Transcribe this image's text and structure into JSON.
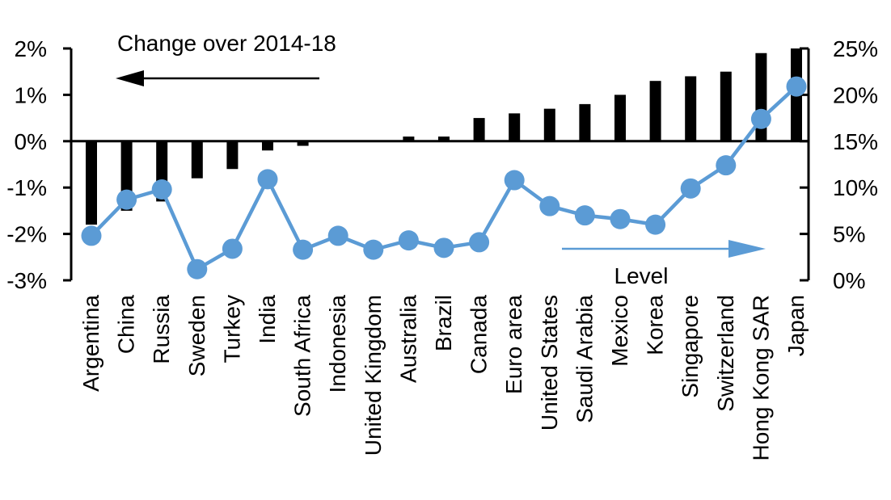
{
  "chart_data": {
    "type": "bar",
    "subtype": "dual-axis-bar-line-combo",
    "grid": "off",
    "legend_position": "none",
    "categories": [
      "Argentina",
      "China",
      "Russia",
      "Sweden",
      "Turkey",
      "India",
      "South Africa",
      "Indonesia",
      "United Kingdom",
      "Australia",
      "Brazil",
      "Canada",
      "Euro area",
      "United States",
      "Saudi Arabia",
      "Mexico",
      "Korea",
      "Singapore",
      "Switzerland",
      "Hong Kong SAR",
      "Japan"
    ],
    "series": [
      {
        "name": "Change over 2014-18",
        "type": "bar",
        "axis": "left",
        "color": "#000000",
        "values": [
          -1.8,
          -1.5,
          -1.3,
          -0.8,
          -0.6,
          -0.2,
          -0.1,
          0,
          0,
          0.1,
          0.1,
          0.5,
          0.6,
          0.7,
          0.8,
          1.0,
          1.3,
          1.4,
          1.5,
          1.9,
          2.0
        ]
      },
      {
        "name": "Level",
        "type": "line",
        "axis": "right",
        "color": "#5B9BD5",
        "values": [
          4.8,
          8.7,
          9.8,
          1.2,
          3.4,
          10.9,
          3.3,
          4.8,
          3.3,
          4.3,
          3.5,
          4.1,
          10.8,
          8.0,
          7.0,
          6.6,
          6.0,
          9.9,
          12.4,
          17.4,
          20.9
        ]
      }
    ],
    "left_axis": {
      "min": -3,
      "max": 2,
      "ticks": [
        {
          "value": 2,
          "label": "2%"
        },
        {
          "value": 1,
          "label": "1%"
        },
        {
          "value": 0,
          "label": "0%"
        },
        {
          "value": -1,
          "label": "-1%"
        },
        {
          "value": -2,
          "label": "-2%"
        },
        {
          "value": -3,
          "label": "-3%"
        }
      ]
    },
    "right_axis": {
      "min": 0,
      "max": 25,
      "ticks": [
        {
          "value": 25,
          "label": "25%"
        },
        {
          "value": 20,
          "label": "20%"
        },
        {
          "value": 15,
          "label": "15%"
        },
        {
          "value": 10,
          "label": "10%"
        },
        {
          "value": 5,
          "label": "5%"
        },
        {
          "value": 0,
          "label": "0%"
        }
      ]
    },
    "annotations": {
      "left_series_label": "Change over 2014-18",
      "right_series_label": "Level"
    }
  },
  "colors": {
    "bar": "#000000",
    "line": "#5B9BD5",
    "background": "#FFFFFF",
    "text": "#000000"
  }
}
